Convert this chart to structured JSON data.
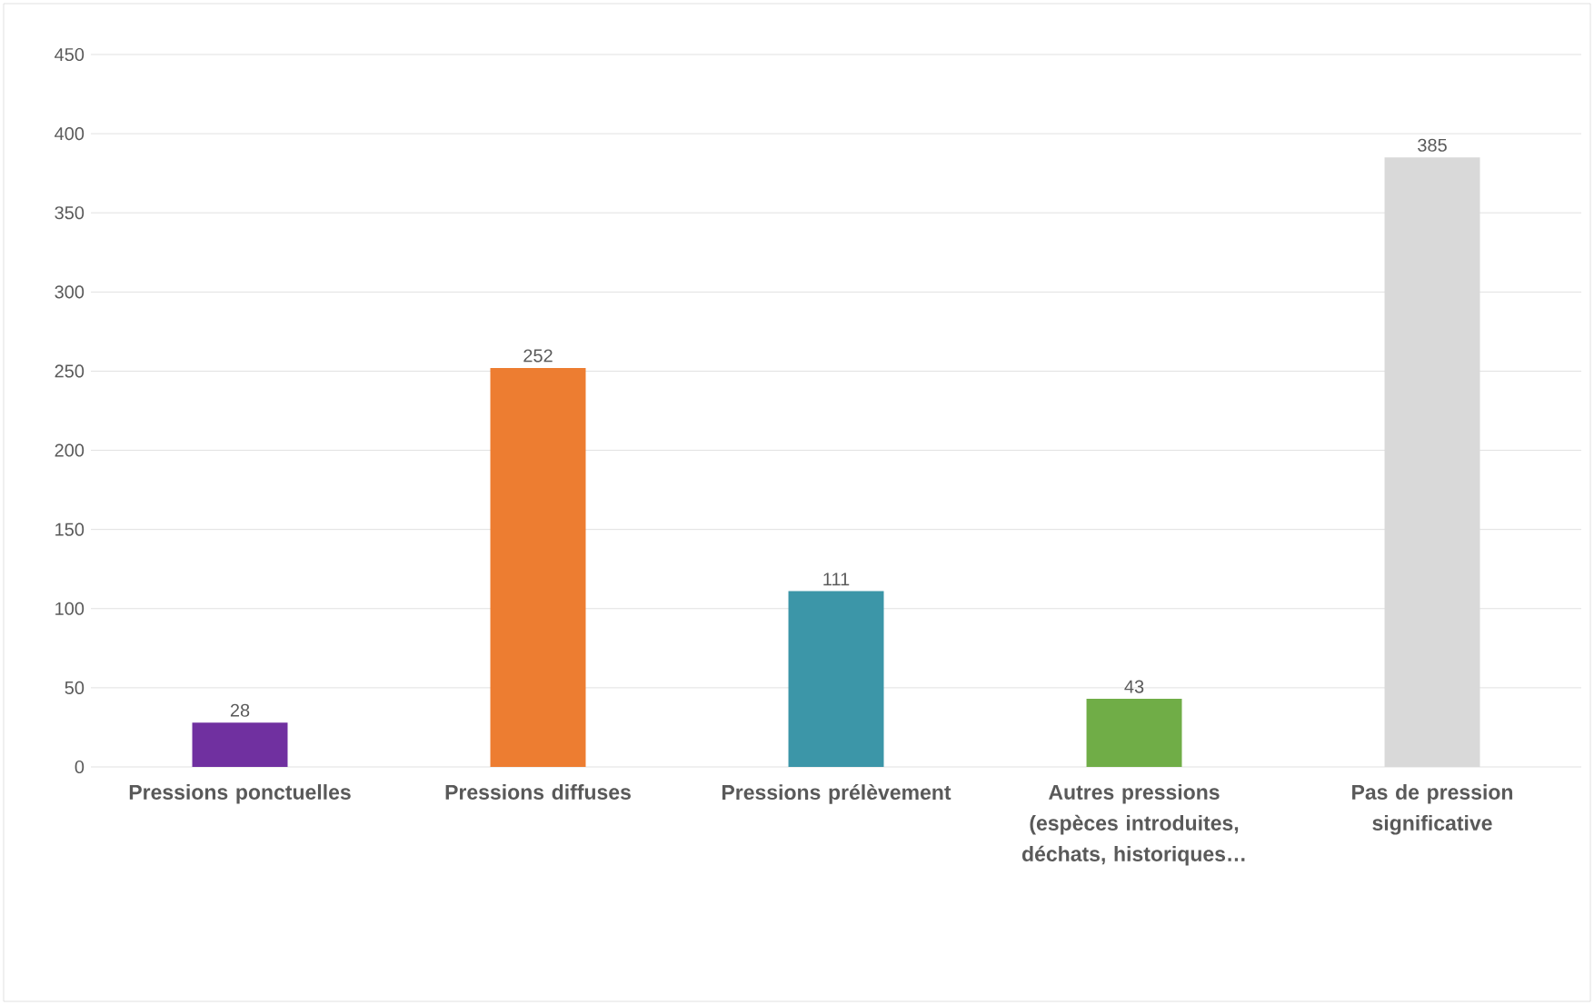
{
  "chart_data": {
    "type": "bar",
    "categories": [
      "Pressions ponctuelles",
      "Pressions diffuses",
      "Pressions prélèvement",
      "Autres pressions (espèces introduites, déchats, historiques…",
      "Pas de pression significative"
    ],
    "values": [
      28,
      252,
      111,
      43,
      385
    ],
    "colors": [
      "#7030a0",
      "#ed7d31",
      "#3c96a8",
      "#70ad47",
      "#d9d9d9"
    ],
    "ylim": [
      0,
      450
    ],
    "yticks": [
      0,
      50,
      100,
      150,
      200,
      250,
      300,
      350,
      400,
      450
    ],
    "grid": "y",
    "data_labels": true
  }
}
